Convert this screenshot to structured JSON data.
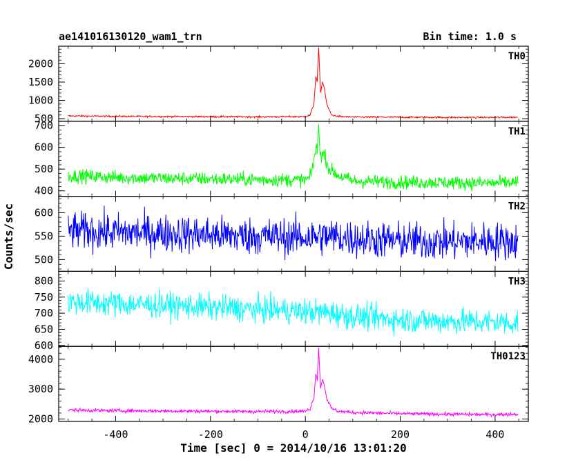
{
  "header": {
    "title": "ae141016130120_wam1_trn",
    "bin_time": "Bin time: 1.0 s"
  },
  "chart_data": {
    "type": "line",
    "title": "ae141016130120_wam1_trn",
    "subtitle": "Bin time: 1.0 s",
    "xlabel": "Time [sec] 0 = 2014/10/16 13:01:20",
    "ylabel": "Counts/sec",
    "xlim": [
      -520,
      470
    ],
    "xticks": [
      -400,
      -200,
      0,
      200,
      400
    ],
    "x_range_data": [
      -500,
      448
    ],
    "grid": false,
    "panels": [
      {
        "name": "TH0",
        "color": "#ff0000",
        "ylim": [
          430,
          2480
        ],
        "yticks": [
          500,
          1000,
          1500,
          2000
        ],
        "x": [
          -500,
          -400,
          -300,
          -200,
          -100,
          0,
          10,
          18,
          22,
          25,
          28,
          32,
          36,
          40,
          45,
          55,
          70,
          100,
          200,
          300,
          400,
          448
        ],
        "y": [
          575,
          565,
          560,
          555,
          550,
          555,
          600,
          900,
          1650,
          1500,
          2450,
          1200,
          1500,
          1350,
          900,
          600,
          560,
          545,
          540,
          535,
          535,
          540
        ]
      },
      {
        "name": "TH1",
        "color": "#00ff00",
        "ylim": [
          375,
          720
        ],
        "yticks": [
          400,
          500,
          600,
          700
        ],
        "x": [
          -500,
          -400,
          -300,
          -200,
          -100,
          0,
          10,
          18,
          22,
          25,
          28,
          32,
          40,
          50,
          70,
          100,
          200,
          300,
          400,
          448
        ],
        "y": [
          470,
          462,
          458,
          455,
          452,
          450,
          460,
          540,
          600,
          580,
          700,
          560,
          570,
          500,
          470,
          445,
          440,
          438,
          435,
          440
        ]
      },
      {
        "name": "TH2",
        "color": "#0000ff",
        "ylim": [
          475,
          635
        ],
        "yticks": [
          500,
          550,
          600
        ],
        "x": [
          -500,
          -400,
          -300,
          -200,
          -100,
          0,
          50,
          100,
          200,
          300,
          400,
          448
        ],
        "y": [
          562,
          558,
          556,
          553,
          550,
          548,
          550,
          545,
          540,
          538,
          540,
          538
        ]
      },
      {
        "name": "TH3",
        "color": "#00ffff",
        "ylim": [
          597,
          830
        ],
        "yticks": [
          600,
          650,
          700,
          750,
          800
        ],
        "x": [
          -500,
          -400,
          -300,
          -200,
          -100,
          0,
          50,
          100,
          200,
          300,
          400,
          448
        ],
        "y": [
          735,
          730,
          725,
          718,
          712,
          705,
          702,
          690,
          680,
          675,
          672,
          670
        ]
      },
      {
        "name": "TH0123",
        "color": "#ff00ff",
        "ylim": [
          1920,
          4430
        ],
        "yticks": [
          2000,
          3000,
          4000
        ],
        "x": [
          -500,
          -400,
          -300,
          -200,
          -100,
          0,
          10,
          18,
          22,
          25,
          28,
          32,
          36,
          40,
          45,
          55,
          70,
          100,
          200,
          300,
          400,
          448
        ],
        "y": [
          2300,
          2280,
          2270,
          2260,
          2250,
          2260,
          2350,
          2700,
          3550,
          3300,
          4400,
          3000,
          3350,
          3150,
          2700,
          2350,
          2260,
          2220,
          2180,
          2160,
          2150,
          2160
        ]
      }
    ]
  }
}
